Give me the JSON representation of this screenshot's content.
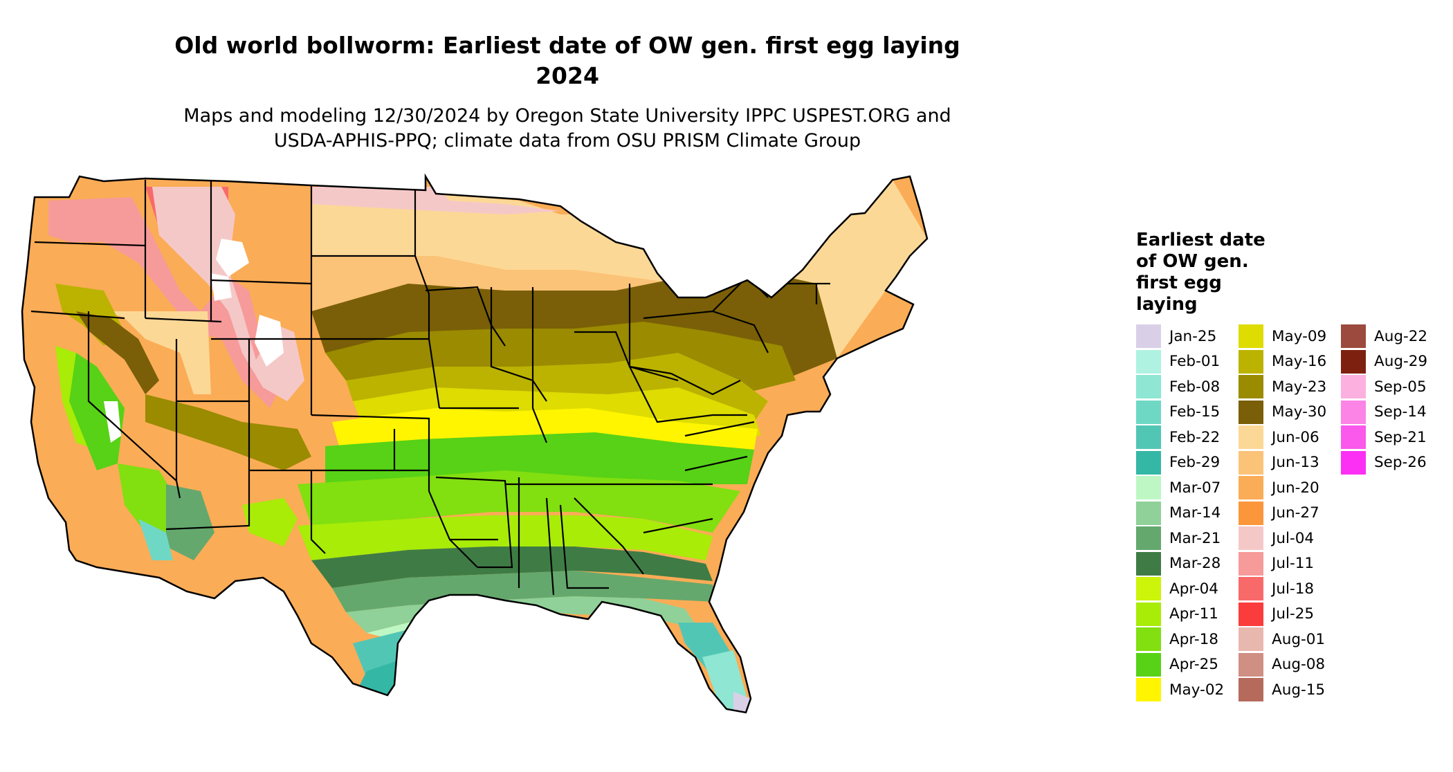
{
  "title_line1": "Old world bollworm: Earliest date of OW gen. first egg laying",
  "title_line2": "2024",
  "subtitle_line1": "Maps and modeling 12/30/2024 by Oregon State University IPPC USPEST.ORG and",
  "subtitle_line2": "USDA-APHIS-PPQ; climate data from OSU PRISM Climate Group",
  "legend": {
    "title_lines": [
      "Earliest date",
      "of OW gen.",
      "first egg",
      "laying"
    ],
    "items": [
      {
        "label": "Jan-25",
        "color": "#d9d0e8"
      },
      {
        "label": "Feb-01",
        "color": "#aff2e2"
      },
      {
        "label": "Feb-08",
        "color": "#8ee6d3"
      },
      {
        "label": "Feb-15",
        "color": "#6fd8c4"
      },
      {
        "label": "Feb-22",
        "color": "#52c6b5"
      },
      {
        "label": "Feb-29",
        "color": "#35b7a5"
      },
      {
        "label": "Mar-07",
        "color": "#bff7c4"
      },
      {
        "label": "Mar-14",
        "color": "#8fd198"
      },
      {
        "label": "Mar-21",
        "color": "#64a86d"
      },
      {
        "label": "Mar-28",
        "color": "#3f7c45"
      },
      {
        "label": "Apr-04",
        "color": "#ccf50a"
      },
      {
        "label": "Apr-11",
        "color": "#a8ec08"
      },
      {
        "label": "Apr-18",
        "color": "#82df10"
      },
      {
        "label": "Apr-25",
        "color": "#57d216"
      },
      {
        "label": "May-02",
        "color": "#fff500"
      },
      {
        "label": "May-09",
        "color": "#dedc00"
      },
      {
        "label": "May-16",
        "color": "#bbb300"
      },
      {
        "label": "May-23",
        "color": "#9a8b00"
      },
      {
        "label": "May-30",
        "color": "#7a5f08"
      },
      {
        "label": "Jun-06",
        "color": "#fcd896"
      },
      {
        "label": "Jun-13",
        "color": "#fbc377"
      },
      {
        "label": "Jun-20",
        "color": "#fbac56"
      },
      {
        "label": "Jun-27",
        "color": "#fb963a"
      },
      {
        "label": "Jul-04",
        "color": "#f5c8c8"
      },
      {
        "label": "Jul-11",
        "color": "#f79a9a"
      },
      {
        "label": "Jul-18",
        "color": "#f86a6a"
      },
      {
        "label": "Jul-25",
        "color": "#fb3c3c"
      },
      {
        "label": "Aug-01",
        "color": "#e8b7ae"
      },
      {
        "label": "Aug-08",
        "color": "#cf8f82"
      },
      {
        "label": "Aug-15",
        "color": "#b56a5c"
      },
      {
        "label": "Aug-22",
        "color": "#9c4a3d"
      },
      {
        "label": "Aug-29",
        "color": "#7e2010"
      },
      {
        "label": "Sep-05",
        "color": "#fbb0e0"
      },
      {
        "label": "Sep-14",
        "color": "#fb84e6"
      },
      {
        "label": "Sep-21",
        "color": "#fb58ec"
      },
      {
        "label": "Sep-26",
        "color": "#fb30f4"
      }
    ]
  }
}
